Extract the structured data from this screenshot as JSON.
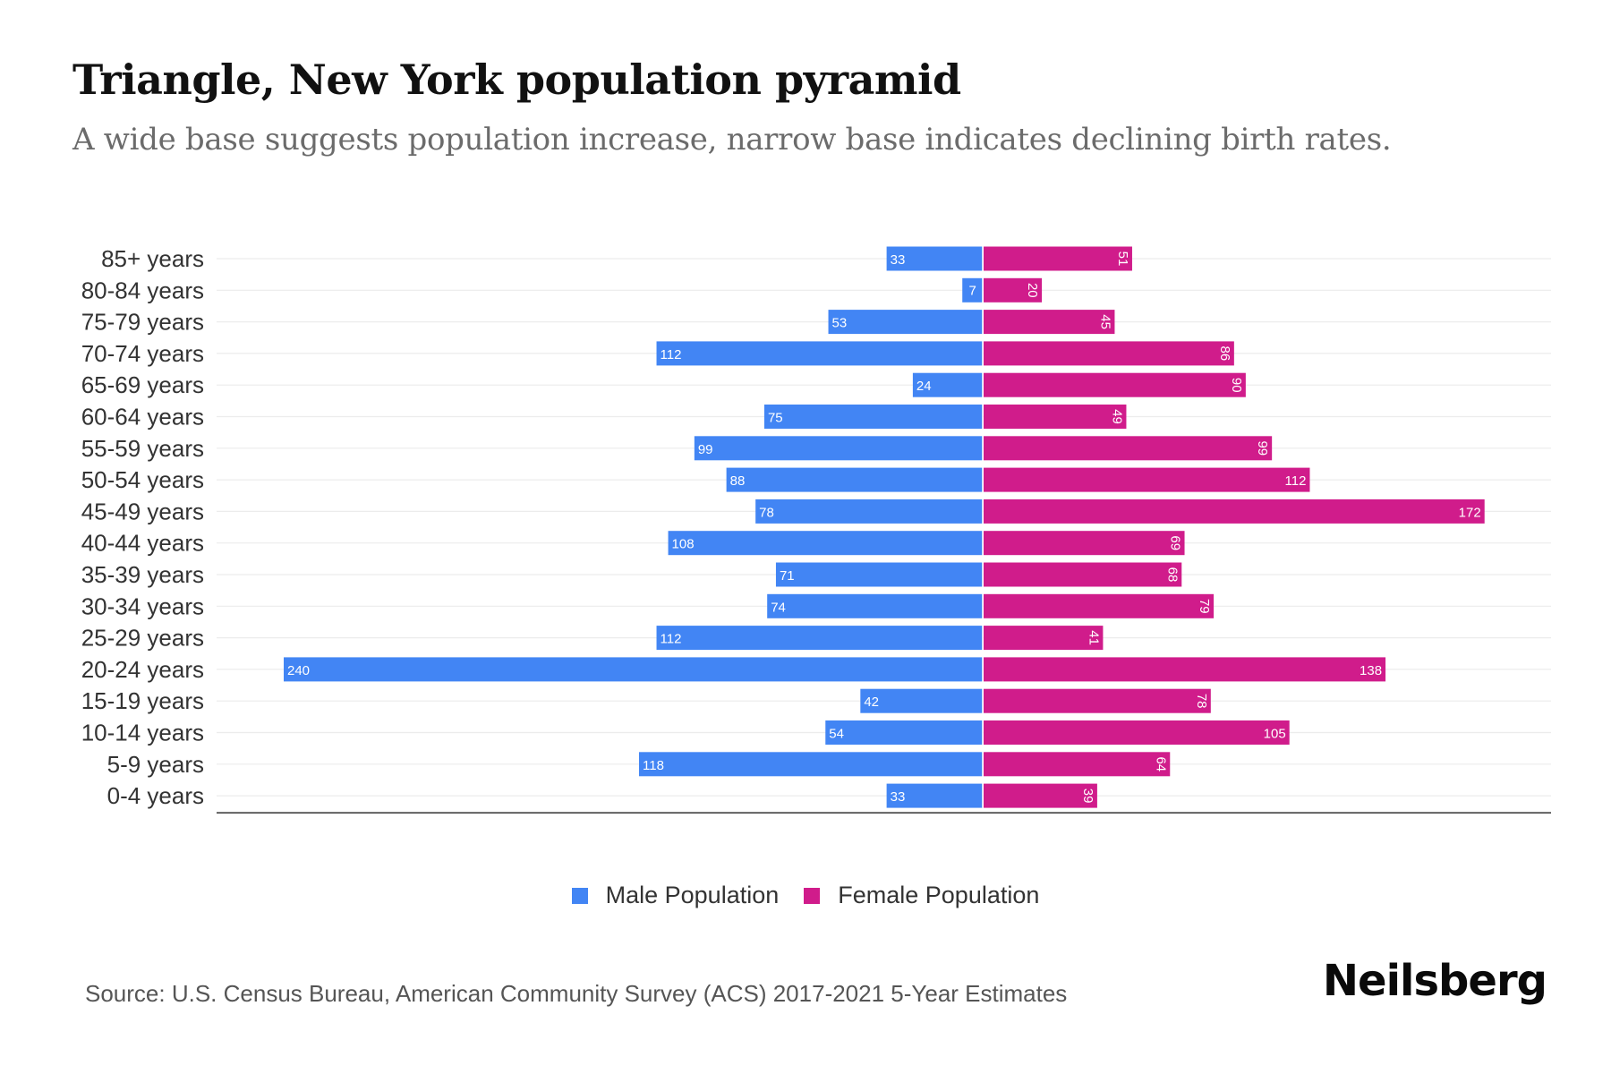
{
  "header": {
    "title": "Triangle, New York population pyramid",
    "subtitle": "A wide base suggests population increase, narrow base indicates declining birth rates."
  },
  "footer": {
    "source": "Source: U.S. Census Bureau, American Community Survey (ACS) 2017-2021 5-Year Estimates",
    "logo": "Neilsberg"
  },
  "colors": {
    "male": "#4285f4",
    "female": "#d01c8b",
    "grid": "#ececec",
    "axis": "#333333"
  },
  "chart_data": {
    "type": "bar",
    "orientation": "horizontal-pyramid",
    "title": "Triangle, New York population pyramid",
    "subtitle": "A wide base suggests population increase, narrow base indicates declining birth rates.",
    "xlabel": "",
    "ylabel": "",
    "categories": [
      "85+ years",
      "80-84 years",
      "75-79 years",
      "70-74 years",
      "65-69 years",
      "60-64 years",
      "55-59 years",
      "50-54 years",
      "45-49 years",
      "40-44 years",
      "35-39 years",
      "30-34 years",
      "25-29 years",
      "20-24 years",
      "15-19 years",
      "10-14 years",
      "5-9 years",
      "0-4 years"
    ],
    "series": [
      {
        "name": "Male Population",
        "side": "left",
        "values": [
          33,
          7,
          53,
          112,
          24,
          75,
          99,
          88,
          78,
          108,
          71,
          74,
          112,
          240,
          42,
          54,
          118,
          33
        ]
      },
      {
        "name": "Female Population",
        "side": "right",
        "values": [
          51,
          20,
          45,
          86,
          90,
          49,
          99,
          112,
          172,
          69,
          68,
          79,
          41,
          138,
          78,
          105,
          64,
          39
        ]
      }
    ],
    "xlim": [
      -262,
      195
    ],
    "grid": true,
    "legend": "bottom-center",
    "data_labels": true
  }
}
